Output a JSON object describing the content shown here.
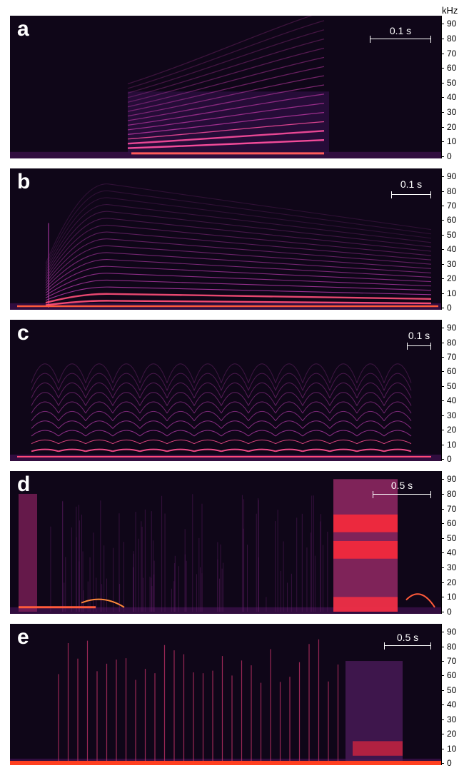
{
  "unit_label": "kHz",
  "tick_labels": [
    "0",
    "10",
    "20",
    "30",
    "40",
    "50",
    "60",
    "70",
    "80",
    "90"
  ],
  "panels": [
    {
      "letter": "a",
      "scale_label": "0.1 s"
    },
    {
      "letter": "b",
      "scale_label": "0.1 s"
    },
    {
      "letter": "c",
      "scale_label": "0.1 s"
    },
    {
      "letter": "d",
      "scale_label": "0.5 s"
    },
    {
      "letter": "e",
      "scale_label": "0.5 s"
    }
  ],
  "colors": {
    "background": "#0f0618",
    "harmonic": "#d13aa8",
    "hot": "#ff3a3a"
  }
}
